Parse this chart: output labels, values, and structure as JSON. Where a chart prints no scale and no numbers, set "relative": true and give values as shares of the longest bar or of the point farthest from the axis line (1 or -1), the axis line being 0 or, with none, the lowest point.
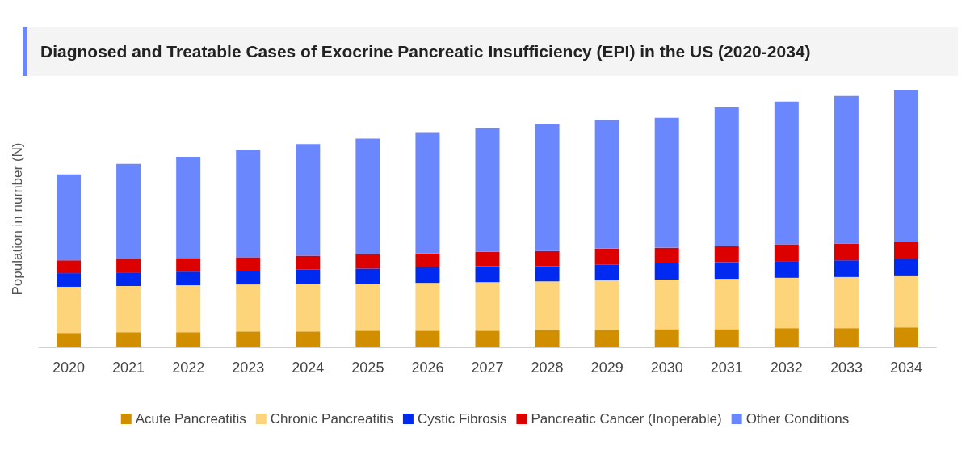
{
  "chart_data": {
    "type": "bar",
    "title": "Diagnosed and Treatable Cases of Exocrine Pancreatic Insufficiency (EPI) in the US (2020-2034)",
    "ylabel": "Population in number (N)",
    "relative": true,
    "stacked": true,
    "legend": "bottom",
    "grid": false,
    "categories": [
      "2020",
      "2021",
      "2022",
      "2023",
      "2024",
      "2025",
      "2026",
      "2027",
      "2028",
      "2029",
      "2030",
      "2031",
      "2032",
      "2033",
      "2034"
    ],
    "series": [
      {
        "name": "Acute Pancreatitis",
        "color": "#d18f00",
        "values": [
          0.056,
          0.059,
          0.059,
          0.062,
          0.062,
          0.065,
          0.065,
          0.065,
          0.068,
          0.068,
          0.071,
          0.071,
          0.075,
          0.075,
          0.078
        ]
      },
      {
        "name": "Chronic Pancreatitis",
        "color": "#fdd47a",
        "values": [
          0.18,
          0.18,
          0.183,
          0.183,
          0.186,
          0.183,
          0.186,
          0.189,
          0.189,
          0.193,
          0.193,
          0.196,
          0.196,
          0.199,
          0.199
        ]
      },
      {
        "name": "Cystic Fibrosis",
        "color": "#002af0",
        "values": [
          0.053,
          0.053,
          0.053,
          0.053,
          0.056,
          0.059,
          0.062,
          0.062,
          0.059,
          0.062,
          0.065,
          0.065,
          0.065,
          0.065,
          0.068
        ]
      },
      {
        "name": "Pancreatic Cancer (Inoperable)",
        "color": "#dd0000",
        "values": [
          0.05,
          0.053,
          0.053,
          0.053,
          0.053,
          0.056,
          0.053,
          0.056,
          0.059,
          0.062,
          0.059,
          0.062,
          0.065,
          0.065,
          0.065
        ]
      },
      {
        "name": "Other Conditions",
        "color": "#6b87fe",
        "values": [
          0.335,
          0.37,
          0.394,
          0.416,
          0.435,
          0.45,
          0.469,
          0.481,
          0.494,
          0.5,
          0.506,
          0.54,
          0.556,
          0.575,
          0.59
        ]
      }
    ]
  }
}
